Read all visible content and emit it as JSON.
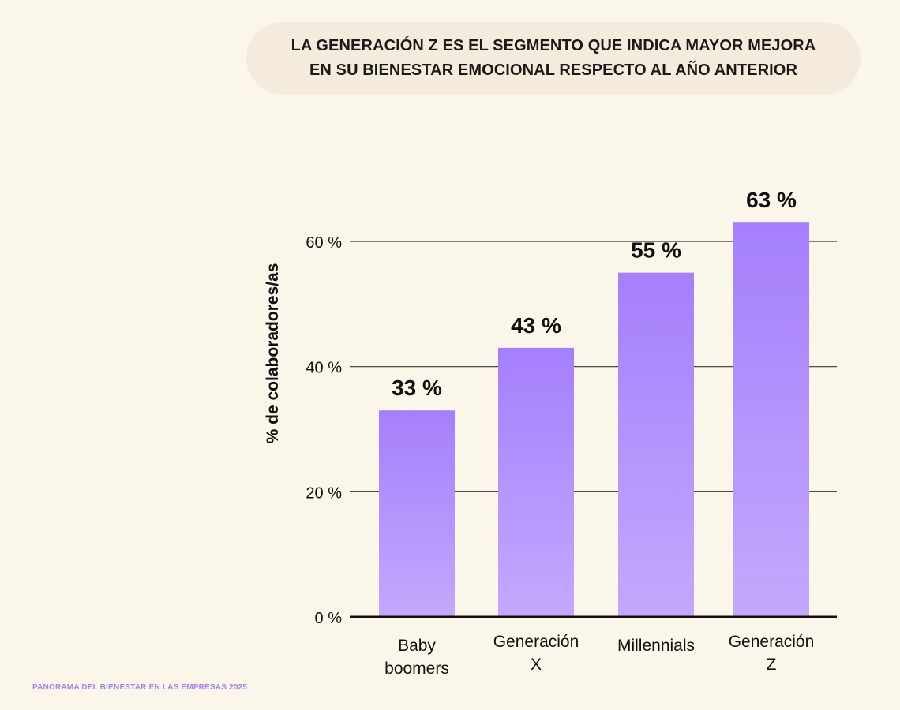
{
  "title": {
    "line1": "LA GENERACIÓN Z ES EL SEGMENTO QUE INDICA MAYOR MEJORA",
    "line2": "EN SU BIENESTAR EMOCIONAL RESPECTO AL AÑO ANTERIOR"
  },
  "footer": "PANORAMA DEL BIENESTAR EN LAS EMPRESAS 2025",
  "colors": {
    "background": "#faf6ea",
    "title_pill": "#f5ebdc",
    "bar_top": "#a57ffd",
    "bar_bottom": "#c4a8fd",
    "footer": "#a97ff5",
    "text": "#111111"
  },
  "chart_data": {
    "type": "bar",
    "categories": [
      [
        "Baby",
        "boomers"
      ],
      [
        "Generación",
        "X"
      ],
      [
        "Millennials"
      ],
      [
        "Generación",
        "Z"
      ]
    ],
    "values": [
      33,
      43,
      55,
      63
    ],
    "data_labels": [
      "33 %",
      "43 %",
      "55 %",
      "63 %"
    ],
    "ylabel": "% de colaboradores/as",
    "yticks": [
      0,
      20,
      40,
      60
    ],
    "ytick_labels": [
      "0 %",
      "20 %",
      "40 %",
      "60 %"
    ],
    "grid": true
  }
}
